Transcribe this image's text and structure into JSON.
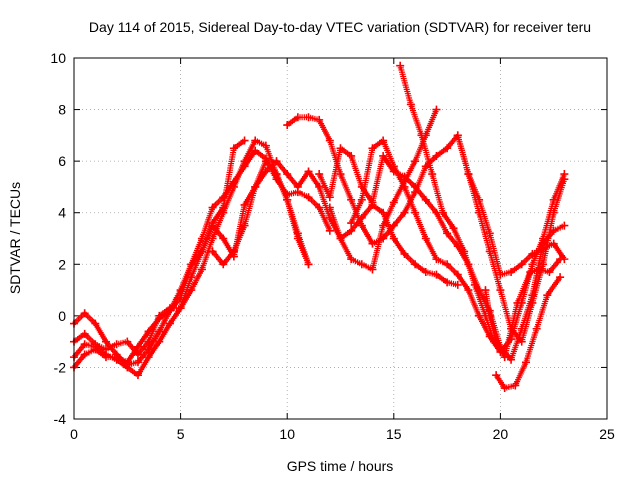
{
  "chart_data": {
    "type": "scatter",
    "title": "Day 114 of 2015, Sidereal Day-to-day VTEC variation (SDTVAR) for receiver teru",
    "xlabel": "GPS time / hours",
    "ylabel": "SDTVAR / TECUs",
    "xlim": [
      0,
      25
    ],
    "ylim": [
      -4,
      10
    ],
    "x_ticks": [
      "0",
      "5",
      "10",
      "15",
      "20",
      "25"
    ],
    "y_ticks": [
      "-4",
      "-2",
      "0",
      "2",
      "4",
      "6",
      "8",
      "10"
    ],
    "grid": true,
    "marker": "+",
    "color": "#ff0000",
    "series": [
      {
        "points": [
          [
            0,
            -0.3
          ],
          [
            0.5,
            0.1
          ],
          [
            1,
            -0.3
          ],
          [
            1.5,
            -1.0
          ],
          [
            2,
            -1.5
          ],
          [
            2.5,
            -1.9
          ],
          [
            3,
            -1.8
          ],
          [
            3.5,
            -1.3
          ],
          [
            4,
            -0.6
          ],
          [
            4.5,
            0.2
          ],
          [
            5,
            1.0
          ],
          [
            5.5,
            2.0
          ],
          [
            6,
            3.0
          ],
          [
            6.5,
            4.2
          ],
          [
            7,
            4.6
          ],
          [
            7.5,
            5.2
          ],
          [
            8,
            5.8
          ],
          [
            8.5,
            6.4
          ],
          [
            9,
            6.1
          ],
          [
            9.5,
            5.3
          ],
          [
            10,
            4.7
          ],
          [
            10.5,
            4.8
          ],
          [
            11,
            4.6
          ],
          [
            11.5,
            4.2
          ],
          [
            12,
            3.3
          ]
        ]
      },
      {
        "points": [
          [
            0,
            -1.0
          ],
          [
            0.5,
            -0.7
          ],
          [
            1,
            -1.1
          ],
          [
            1.5,
            -1.3
          ],
          [
            2,
            -1.1
          ],
          [
            2.5,
            -1.0
          ],
          [
            3,
            -1.5
          ],
          [
            3.5,
            -1.0
          ],
          [
            4,
            0.0
          ],
          [
            4.5,
            0.3
          ],
          [
            5,
            0.3
          ],
          [
            5.5,
            1.0
          ],
          [
            6,
            1.8
          ],
          [
            6.5,
            3.0
          ],
          [
            7,
            4.0
          ],
          [
            7.5,
            5.0
          ],
          [
            8,
            6.0
          ],
          [
            8.5,
            6.8
          ],
          [
            9,
            6.6
          ],
          [
            9.5,
            5.5
          ],
          [
            10,
            4.5
          ],
          [
            10.5,
            3.0
          ],
          [
            11,
            2.0
          ]
        ]
      },
      {
        "points": [
          [
            0,
            -1.6
          ],
          [
            0.5,
            -1.1
          ],
          [
            1,
            -1.2
          ],
          [
            1.5,
            -1.5
          ],
          [
            2,
            -1.7
          ],
          [
            2.5,
            -2.0
          ],
          [
            3,
            -2.3
          ],
          [
            3.5,
            -1.6
          ],
          [
            4,
            -1.0
          ],
          [
            4.5,
            -0.3
          ],
          [
            5,
            0.3
          ],
          [
            5.5,
            1.5
          ],
          [
            6,
            2.5
          ],
          [
            6.5,
            3.5
          ],
          [
            7,
            3.0
          ],
          [
            7.5,
            2.3
          ],
          [
            8,
            4.3
          ],
          [
            8.5,
            5.0
          ],
          [
            9,
            5.6
          ],
          [
            9.5,
            6.0
          ],
          [
            10,
            5.5
          ],
          [
            10.5,
            5.0
          ],
          [
            11,
            5.6
          ],
          [
            11.5,
            5.0
          ],
          [
            12,
            3.8
          ],
          [
            12.5,
            3.0
          ],
          [
            13,
            3.3
          ],
          [
            13.5,
            3.8
          ],
          [
            14,
            4.3
          ],
          [
            14.5,
            4.0
          ],
          [
            15,
            3.0
          ],
          [
            15.5,
            2.4
          ],
          [
            16,
            2.0
          ],
          [
            16.5,
            1.7
          ],
          [
            17,
            1.6
          ],
          [
            17.5,
            1.3
          ],
          [
            18,
            1.2
          ]
        ]
      },
      {
        "points": [
          [
            0,
            -2.0
          ],
          [
            0.5,
            -1.5
          ],
          [
            1,
            -1.3
          ],
          [
            1.5,
            -1.6
          ],
          [
            2,
            -1.6
          ],
          [
            2.5,
            -1.8
          ],
          [
            3,
            -1.2
          ],
          [
            3.5,
            -0.6
          ],
          [
            4,
            -0.1
          ],
          [
            4.5,
            0.2
          ],
          [
            5,
            0.7
          ],
          [
            5.5,
            2.0
          ],
          [
            6,
            2.5
          ],
          [
            6.5,
            3.6
          ],
          [
            7,
            4.2
          ],
          [
            7.5,
            6.5
          ],
          [
            8,
            6.8
          ]
        ]
      },
      {
        "points": [
          [
            6.5,
            2.5
          ],
          [
            7,
            2.0
          ],
          [
            7.5,
            2.5
          ],
          [
            8,
            3.5
          ],
          [
            8.5,
            5.0
          ],
          [
            9,
            6.0
          ],
          [
            9.5,
            5.5
          ],
          [
            10,
            4.5
          ],
          [
            10.5,
            3.2
          ],
          [
            11,
            2.0
          ]
        ]
      },
      {
        "points": [
          [
            10,
            7.4
          ],
          [
            10.5,
            7.7
          ],
          [
            11,
            7.7
          ],
          [
            11.5,
            7.6
          ],
          [
            12,
            6.8
          ],
          [
            12.5,
            5.5
          ],
          [
            13,
            4.5
          ],
          [
            13.5,
            3.5
          ],
          [
            14,
            2.8
          ],
          [
            14.5,
            3.0
          ],
          [
            15,
            3.5
          ],
          [
            15.5,
            4.0
          ],
          [
            16,
            4.8
          ],
          [
            16.5,
            5.8
          ],
          [
            17,
            6.2
          ],
          [
            17.5,
            6.5
          ],
          [
            18,
            7.0
          ],
          [
            18.5,
            5.5
          ],
          [
            19,
            4.5
          ],
          [
            19.5,
            3.2
          ],
          [
            20,
            1.6
          ],
          [
            20.5,
            1.7
          ],
          [
            21,
            2.0
          ],
          [
            21.5,
            2.4
          ],
          [
            22,
            2.6
          ],
          [
            22.5,
            2.8
          ],
          [
            23,
            2.2
          ]
        ]
      },
      {
        "points": [
          [
            11.5,
            5.5
          ],
          [
            12,
            4.6
          ],
          [
            12.5,
            6.5
          ],
          [
            13,
            6.2
          ],
          [
            13.5,
            5.0
          ],
          [
            14,
            4.4
          ],
          [
            14.5,
            6.2
          ],
          [
            15,
            5.6
          ],
          [
            15.5,
            5.4
          ],
          [
            16,
            5.0
          ],
          [
            16.5,
            4.5
          ],
          [
            17,
            4.0
          ],
          [
            17.5,
            3.2
          ],
          [
            18,
            2.7
          ],
          [
            18.5,
            2.0
          ],
          [
            19,
            1.0
          ],
          [
            19.5,
            0.2
          ],
          [
            20,
            -1.2
          ],
          [
            20.5,
            -1.7
          ],
          [
            21,
            -0.5
          ],
          [
            21.5,
            0.8
          ],
          [
            22,
            2.8
          ],
          [
            22.5,
            3.3
          ],
          [
            23,
            3.5
          ]
        ]
      },
      {
        "points": [
          [
            12,
            4.2
          ],
          [
            12.5,
            3.0
          ],
          [
            13,
            2.2
          ],
          [
            13.5,
            2.0
          ],
          [
            14,
            1.8
          ],
          [
            14.5,
            3.5
          ],
          [
            15,
            4.4
          ],
          [
            15.5,
            5.2
          ],
          [
            16,
            6.0
          ],
          [
            16.5,
            7.0
          ],
          [
            17,
            8.0
          ]
        ]
      },
      {
        "points": [
          [
            13,
            3.6
          ],
          [
            13.5,
            4.5
          ],
          [
            14,
            6.5
          ],
          [
            14.5,
            6.8
          ],
          [
            15,
            5.8
          ],
          [
            15.5,
            5.0
          ],
          [
            16,
            4.0
          ],
          [
            16.5,
            3.0
          ],
          [
            17,
            2.2
          ],
          [
            17.5,
            2.0
          ],
          [
            18,
            1.6
          ],
          [
            18.5,
            1.0
          ],
          [
            19,
            0.0
          ],
          [
            19.5,
            -0.8
          ],
          [
            20,
            -1.4
          ],
          [
            20.5,
            -0.9
          ],
          [
            21,
            0.5
          ],
          [
            21.5,
            2.0
          ],
          [
            22,
            3.0
          ],
          [
            22.5,
            4.5
          ],
          [
            23,
            5.5
          ]
        ]
      },
      {
        "points": [
          [
            15.3,
            9.7
          ],
          [
            15.8,
            8.2
          ],
          [
            16.3,
            7.0
          ],
          [
            16.8,
            5.5
          ],
          [
            17.3,
            4.0
          ],
          [
            17.8,
            3.4
          ],
          [
            18.3,
            2.5
          ],
          [
            18.8,
            1.2
          ],
          [
            19.3,
            0.0
          ],
          [
            19.7,
            -1.0
          ]
        ]
      },
      {
        "points": [
          [
            18,
            7.0
          ],
          [
            18.5,
            5.5
          ],
          [
            19,
            4.0
          ],
          [
            19.5,
            2.5
          ],
          [
            20,
            1.0
          ],
          [
            20.5,
            -0.5
          ],
          [
            21,
            -1.0
          ],
          [
            21.5,
            0.5
          ],
          [
            22,
            2.0
          ],
          [
            22.5,
            4.0
          ],
          [
            23,
            5.3
          ]
        ]
      },
      {
        "points": [
          [
            19.8,
            -2.3
          ],
          [
            20.2,
            -2.8
          ],
          [
            20.7,
            -2.7
          ],
          [
            21.2,
            -1.8
          ],
          [
            21.7,
            -0.5
          ],
          [
            22.2,
            0.8
          ],
          [
            22.8,
            1.5
          ]
        ]
      },
      {
        "points": [
          [
            19.3,
            1.0
          ],
          [
            19.5,
            0.0
          ],
          [
            19.8,
            -1.0
          ],
          [
            20.2,
            -1.6
          ],
          [
            20.8,
            0.5
          ],
          [
            21.4,
            1.7
          ],
          [
            21.8,
            1.8
          ],
          [
            22.3,
            1.7
          ],
          [
            22.8,
            2.2
          ]
        ]
      }
    ]
  }
}
